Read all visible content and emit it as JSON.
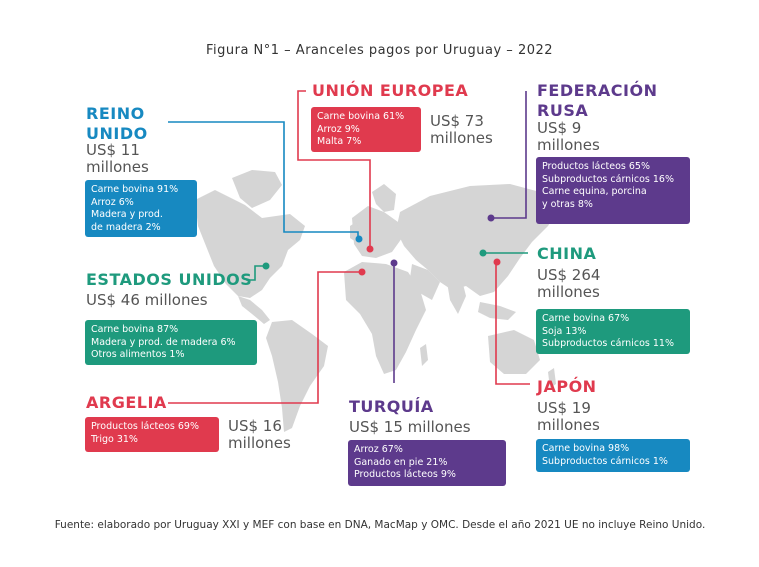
{
  "title": "Figura N°1 – Aranceles pagos por Uruguay – 2022",
  "colors": {
    "blue": "#1789c1",
    "green": "#1e9a7d",
    "red": "#e03a4e",
    "purple": "#5d3a8c",
    "map": "#d5d5d5"
  },
  "regions": {
    "reino_unido": {
      "name1": "REINO",
      "name2": "UNIDO",
      "amount1": "US$ 11",
      "amount2": "millones",
      "items": [
        "Carne bovina 91%",
        "Arroz 6%",
        "Madera y prod.",
        "de madera 2%"
      ]
    },
    "union_europea": {
      "name": "UNIÓN EUROPEA",
      "amount1": "US$ 73",
      "amount2": "millones",
      "items": [
        "Carne bovina 61%",
        "Arroz 9%",
        "Malta 7%"
      ]
    },
    "federacion_rusa": {
      "name1": "FEDERACIÓN",
      "name2": "RUSA",
      "amount1": "US$ 9",
      "amount2": "millones",
      "items": [
        "Productos lácteos 65%",
        "Subproductos cárnicos 16%",
        "Carne equina, porcina",
        "y otras 8%"
      ]
    },
    "estados_unidos": {
      "name": "ESTADOS UNIDOS",
      "amount": "US$ 46 millones",
      "items": [
        "Carne bovina 87%",
        "Madera y prod. de madera 6%",
        "Otros alimentos 1%"
      ]
    },
    "china": {
      "name": "CHINA",
      "amount1": "US$ 264",
      "amount2": "millones",
      "items": [
        "Carne bovina 67%",
        "Soja 13%",
        "Subproductos cárnicos 11%"
      ]
    },
    "argelia": {
      "name": "ARGELIA",
      "amount1": "US$ 16",
      "amount2": "millones",
      "items": [
        "Productos lácteos 69%",
        "Trigo 31%"
      ]
    },
    "turquia": {
      "name": "TURQUÍA",
      "amount": "US$ 15 millones",
      "items": [
        "Arroz 67%",
        "Ganado en pie 21%",
        "Productos lácteos 9%"
      ]
    },
    "japon": {
      "name": "JAPÓN",
      "amount1": "US$ 19",
      "amount2": "millones",
      "items": [
        "Carne bovina 98%",
        "Subproductos cárnicos 1%"
      ]
    }
  },
  "footer": "Fuente: elaborado por Uruguay XXI y MEF con base en DNA, MacMap y OMC. Desde el año 2021 UE no incluye Reino Unido."
}
